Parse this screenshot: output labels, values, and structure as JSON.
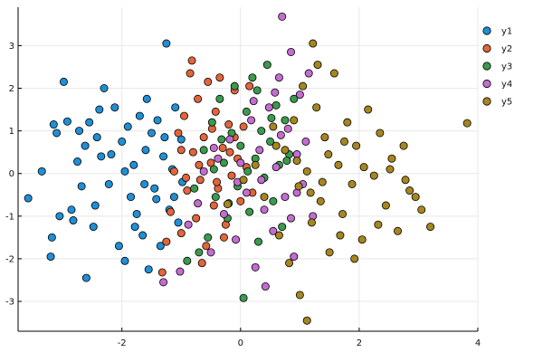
{
  "chart_data": {
    "type": "scatter",
    "title": "",
    "xlabel": "",
    "ylabel": "",
    "xlim": [
      -3.75,
      4.0
    ],
    "ylim": [
      -3.7,
      3.9
    ],
    "grid": true,
    "legend": "top-right",
    "x_ticks": [
      -2,
      0,
      2,
      4
    ],
    "y_ticks": [
      -3,
      -2,
      -1,
      0,
      1,
      2,
      3
    ],
    "x_tick_labels": [
      "-2",
      "0",
      "2",
      "4"
    ],
    "y_tick_labels": [
      "-3",
      "-2",
      "-1",
      "0",
      "1",
      "2",
      "3"
    ],
    "series": [
      {
        "name": "y1",
        "color": "#1f8fd6",
        "points": [
          [
            -3.58,
            -0.58
          ],
          [
            -3.35,
            0.05
          ],
          [
            -3.2,
            -1.95
          ],
          [
            -3.18,
            -1.5
          ],
          [
            -3.15,
            1.15
          ],
          [
            -3.1,
            0.95
          ],
          [
            -3.05,
            -1.0
          ],
          [
            -2.98,
            2.15
          ],
          [
            -2.92,
            1.22
          ],
          [
            -2.82,
            -1.1
          ],
          [
            -2.75,
            0.28
          ],
          [
            -2.72,
            1.0
          ],
          [
            -2.68,
            -0.3
          ],
          [
            -2.62,
            0.65
          ],
          [
            -2.55,
            1.2
          ],
          [
            -2.48,
            -1.25
          ],
          [
            -2.42,
            0.85
          ],
          [
            -2.38,
            1.5
          ],
          [
            -2.3,
            2.0
          ],
          [
            -2.22,
            -0.25
          ],
          [
            -2.18,
            0.45
          ],
          [
            -2.12,
            1.55
          ],
          [
            -2.05,
            -1.7
          ],
          [
            -2.0,
            0.75
          ],
          [
            -1.95,
            -2.05
          ],
          [
            -1.9,
            1.1
          ],
          [
            -1.85,
            -0.55
          ],
          [
            -1.8,
            0.2
          ],
          [
            -1.75,
            -0.95
          ],
          [
            -1.7,
            1.35
          ],
          [
            -1.65,
            -1.45
          ],
          [
            -1.6,
            0.55
          ],
          [
            -1.55,
            -2.25
          ],
          [
            -1.5,
            0.95
          ],
          [
            -1.45,
            -0.35
          ],
          [
            -1.4,
            1.25
          ],
          [
            -1.35,
            -1.7
          ],
          [
            -1.3,
            0.4
          ],
          [
            -1.25,
            3.05
          ],
          [
            -1.2,
            -0.85
          ],
          [
            -1.15,
            0.1
          ],
          [
            -1.1,
            1.55
          ],
          [
            -1.05,
            -1.15
          ],
          [
            -1.0,
            0.8
          ],
          [
            -0.98,
            -0.2
          ],
          [
            -2.6,
            -2.45
          ],
          [
            -2.35,
            0.4
          ],
          [
            -1.78,
            -1.25
          ],
          [
            -1.58,
            1.75
          ],
          [
            -1.42,
            -0.6
          ],
          [
            -2.85,
            -0.85
          ],
          [
            -2.45,
            -0.75
          ],
          [
            -1.95,
            0.05
          ],
          [
            -1.62,
            -0.25
          ],
          [
            -1.28,
            0.85
          ],
          [
            -1.12,
            -0.55
          ]
        ]
      },
      {
        "name": "y2",
        "color": "#e2653b",
        "points": [
          [
            -1.32,
            -2.32
          ],
          [
            -1.25,
            -1.6
          ],
          [
            -1.18,
            -0.9
          ],
          [
            -1.12,
            0.05
          ],
          [
            -1.05,
            0.95
          ],
          [
            -1.0,
            -1.4
          ],
          [
            -0.95,
            1.35
          ],
          [
            -0.9,
            -0.4
          ],
          [
            -0.85,
            2.35
          ],
          [
            -0.8,
            0.5
          ],
          [
            -0.75,
            -1.05
          ],
          [
            -0.72,
            1.75
          ],
          [
            -0.68,
            -0.15
          ],
          [
            -0.62,
            0.85
          ],
          [
            -0.58,
            -1.7
          ],
          [
            -0.55,
            2.15
          ],
          [
            -0.5,
            0.25
          ],
          [
            -0.45,
            -0.75
          ],
          [
            -0.42,
            1.45
          ],
          [
            -0.38,
            -0.35
          ],
          [
            -0.35,
            2.25
          ],
          [
            -0.3,
            0.6
          ],
          [
            -0.25,
            -1.2
          ],
          [
            -0.2,
            1.15
          ],
          [
            -0.15,
            -0.05
          ],
          [
            -0.1,
            1.95
          ],
          [
            -0.05,
            0.35
          ],
          [
            0.0,
            -0.65
          ],
          [
            0.05,
            1.1
          ],
          [
            0.1,
            0.15
          ],
          [
            0.15,
            2.05
          ],
          [
            0.2,
            -0.45
          ],
          [
            -0.82,
            2.65
          ],
          [
            -0.65,
            -2.1
          ],
          [
            -0.48,
            1.05
          ],
          [
            -0.28,
            -1.5
          ],
          [
            -0.1,
            0.85
          ],
          [
            -1.0,
            0.55
          ],
          [
            -0.7,
            0.2
          ],
          [
            -0.4,
            -0.2
          ],
          [
            -0.18,
            0.5
          ],
          [
            -0.92,
            -0.1
          ]
        ]
      },
      {
        "name": "y3",
        "color": "#3b9a4e",
        "points": [
          [
            -0.9,
            -2.05
          ],
          [
            -0.78,
            -0.35
          ],
          [
            -0.62,
            0.55
          ],
          [
            -0.55,
            -1.5
          ],
          [
            -0.48,
            1.2
          ],
          [
            -0.42,
            -0.55
          ],
          [
            -0.35,
            1.75
          ],
          [
            -0.28,
            0.25
          ],
          [
            -0.22,
            -1.05
          ],
          [
            -0.15,
            0.95
          ],
          [
            -0.1,
            2.05
          ],
          [
            -0.05,
            -0.3
          ],
          [
            0.0,
            0.65
          ],
          [
            0.05,
            -2.92
          ],
          [
            0.1,
            1.45
          ],
          [
            0.15,
            -0.9
          ],
          [
            0.2,
            2.25
          ],
          [
            0.25,
            0.35
          ],
          [
            0.3,
            -1.6
          ],
          [
            0.35,
            1.0
          ],
          [
            0.4,
            -0.1
          ],
          [
            0.45,
            2.55
          ],
          [
            0.5,
            0.75
          ],
          [
            0.55,
            -0.65
          ],
          [
            0.6,
            1.6
          ],
          [
            0.65,
            0.2
          ],
          [
            0.7,
            -1.25
          ],
          [
            0.75,
            1.25
          ],
          [
            0.82,
            0.45
          ],
          [
            0.9,
            1.75
          ],
          [
            -0.7,
            -1.85
          ],
          [
            -0.45,
            0.1
          ],
          [
            -0.2,
            -0.7
          ],
          [
            0.12,
            0.05
          ],
          [
            0.28,
            1.95
          ],
          [
            0.52,
            1.3
          ],
          [
            0.78,
            0.3
          ],
          [
            -0.32,
            0.8
          ]
        ]
      },
      {
        "name": "y4",
        "color": "#c46cd1",
        "points": [
          [
            -1.3,
            -2.55
          ],
          [
            -1.02,
            -2.3
          ],
          [
            -0.88,
            -1.2
          ],
          [
            -0.72,
            -0.7
          ],
          [
            -0.62,
            0.05
          ],
          [
            -0.5,
            -1.85
          ],
          [
            -0.38,
            0.35
          ],
          [
            -0.28,
            -0.95
          ],
          [
            -0.18,
            0.8
          ],
          [
            -0.08,
            -1.55
          ],
          [
            0.0,
            0.25
          ],
          [
            0.1,
            -0.45
          ],
          [
            0.18,
            1.25
          ],
          [
            0.25,
            -2.2
          ],
          [
            0.32,
            0.55
          ],
          [
            0.4,
            -0.85
          ],
          [
            0.48,
            1.55
          ],
          [
            0.55,
            -1.35
          ],
          [
            0.6,
            0.15
          ],
          [
            0.65,
            2.25
          ],
          [
            0.7,
            3.68
          ],
          [
            0.75,
            -0.55
          ],
          [
            0.8,
            1.05
          ],
          [
            0.85,
            2.85
          ],
          [
            0.9,
            -1.95
          ],
          [
            0.95,
            0.45
          ],
          [
            1.0,
            1.85
          ],
          [
            1.05,
            -0.25
          ],
          [
            1.15,
            2.35
          ],
          [
            1.22,
            -1.0
          ],
          [
            0.42,
            -2.65
          ],
          [
            0.58,
            1.9
          ],
          [
            -0.45,
            0.6
          ],
          [
            0.22,
            1.7
          ],
          [
            0.85,
            -1.05
          ],
          [
            1.1,
            0.75
          ],
          [
            -0.05,
            -0.2
          ],
          [
            0.35,
            -0.15
          ],
          [
            0.68,
            0.9
          ],
          [
            0.95,
            -0.45
          ]
        ]
      },
      {
        "name": "y5",
        "color": "#a7861f",
        "points": [
          [
            -0.22,
            -0.72
          ],
          [
            0.05,
            -0.15
          ],
          [
            0.25,
            0.2
          ],
          [
            0.4,
            -0.55
          ],
          [
            0.55,
            1.1
          ],
          [
            0.65,
            -1.45
          ],
          [
            0.75,
            0.55
          ],
          [
            0.82,
            -2.1
          ],
          [
            0.9,
            1.25
          ],
          [
            0.98,
            -0.3
          ],
          [
            1.05,
            2.05
          ],
          [
            1.12,
            0.05
          ],
          [
            1.2,
            -1.15
          ],
          [
            1.28,
            1.55
          ],
          [
            1.35,
            -0.65
          ],
          [
            1.42,
            0.85
          ],
          [
            1.5,
            -1.85
          ],
          [
            1.58,
            2.35
          ],
          [
            1.65,
            0.2
          ],
          [
            1.72,
            -0.95
          ],
          [
            1.8,
            1.2
          ],
          [
            1.88,
            -0.25
          ],
          [
            1.95,
            0.65
          ],
          [
            2.05,
            -1.55
          ],
          [
            2.15,
            1.5
          ],
          [
            2.25,
            -0.05
          ],
          [
            2.35,
            0.95
          ],
          [
            2.45,
            -0.75
          ],
          [
            2.55,
            0.35
          ],
          [
            2.65,
            -1.35
          ],
          [
            2.75,
            0.65
          ],
          [
            2.85,
            -0.4
          ],
          [
            2.95,
            -0.55
          ],
          [
            3.05,
            -0.85
          ],
          [
            3.2,
            -1.25
          ],
          [
            3.82,
            1.18
          ],
          [
            1.0,
            -2.85
          ],
          [
            1.12,
            -3.45
          ],
          [
            1.22,
            3.05
          ],
          [
            1.3,
            2.55
          ],
          [
            1.68,
            -1.45
          ],
          [
            1.92,
            -2.0
          ],
          [
            2.32,
            -1.2
          ],
          [
            2.52,
            0.1
          ],
          [
            2.78,
            -0.15
          ],
          [
            1.48,
            0.45
          ],
          [
            1.18,
            -0.45
          ],
          [
            0.6,
            0.65
          ],
          [
            0.95,
            0.3
          ],
          [
            1.75,
            0.75
          ],
          [
            2.08,
            0.15
          ],
          [
            1.38,
            -0.2
          ]
        ]
      }
    ]
  }
}
